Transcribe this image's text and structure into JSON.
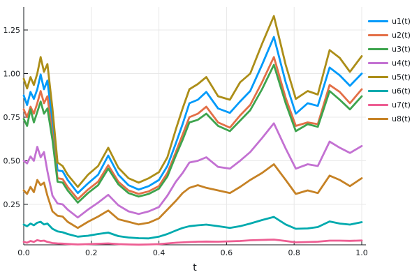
{
  "chart_data": {
    "type": "line",
    "title": "",
    "xlabel": "t",
    "ylabel": "",
    "xlim": [
      0.0,
      1.0
    ],
    "ylim": [
      0.0,
      1.38
    ],
    "grid": true,
    "legend_position": "outer-top-right",
    "x_ticks": [
      "0.0",
      "0.2",
      "0.4",
      "0.6",
      "0.8",
      "1.0"
    ],
    "x_tick_values": [
      0,
      0.2,
      0.4,
      0.6,
      0.8,
      1.0
    ],
    "y_ticks": [
      "0.25",
      "0.50",
      "0.75",
      "1.00",
      "1.25"
    ],
    "y_tick_values": [
      0.25,
      0.5,
      0.75,
      1.0,
      1.25
    ],
    "x": [
      0,
      0.01,
      0.02,
      0.03,
      0.04,
      0.05,
      0.06,
      0.07,
      0.085,
      0.1,
      0.115,
      0.13,
      0.16,
      0.19,
      0.22,
      0.25,
      0.28,
      0.31,
      0.34,
      0.37,
      0.4,
      0.425,
      0.45,
      0.47,
      0.49,
      0.515,
      0.54,
      0.575,
      0.61,
      0.64,
      0.67,
      0.705,
      0.74,
      0.775,
      0.805,
      0.84,
      0.87,
      0.905,
      0.935,
      0.965,
      1.0
    ],
    "series": [
      {
        "name": "u1(t)",
        "color": "#009AFA",
        "values": [
          0.875,
          0.82,
          0.895,
          0.855,
          0.91,
          0.995,
          0.91,
          0.96,
          0.72,
          0.445,
          0.44,
          0.39,
          0.315,
          0.37,
          0.42,
          0.53,
          0.42,
          0.36,
          0.335,
          0.355,
          0.39,
          0.47,
          0.6,
          0.71,
          0.83,
          0.85,
          0.895,
          0.8,
          0.775,
          0.84,
          0.9,
          1.05,
          1.21,
          0.95,
          0.77,
          0.83,
          0.815,
          1.035,
          0.99,
          0.93,
          1.0
        ]
      },
      {
        "name": "u2(t)",
        "color": "#E36F47",
        "values": [
          0.795,
          0.75,
          0.81,
          0.77,
          0.83,
          0.9,
          0.83,
          0.87,
          0.65,
          0.4,
          0.395,
          0.35,
          0.28,
          0.335,
          0.38,
          0.475,
          0.38,
          0.33,
          0.31,
          0.325,
          0.355,
          0.43,
          0.55,
          0.65,
          0.75,
          0.77,
          0.81,
          0.72,
          0.69,
          0.76,
          0.82,
          0.95,
          1.095,
          0.86,
          0.7,
          0.72,
          0.71,
          0.935,
          0.895,
          0.83,
          0.91
        ]
      },
      {
        "name": "u3(t)",
        "color": "#3EA44E",
        "values": [
          0.74,
          0.7,
          0.795,
          0.72,
          0.78,
          0.84,
          0.77,
          0.8,
          0.62,
          0.38,
          0.375,
          0.33,
          0.26,
          0.315,
          0.36,
          0.455,
          0.365,
          0.315,
          0.295,
          0.31,
          0.34,
          0.41,
          0.53,
          0.62,
          0.72,
          0.735,
          0.77,
          0.7,
          0.67,
          0.73,
          0.79,
          0.91,
          1.05,
          0.83,
          0.67,
          0.71,
          0.695,
          0.9,
          0.85,
          0.795,
          0.87
        ]
      },
      {
        "name": "u4(t)",
        "color": "#C371D2",
        "values": [
          0.5,
          0.485,
          0.525,
          0.5,
          0.58,
          0.52,
          0.55,
          0.44,
          0.3,
          0.255,
          0.25,
          0.22,
          0.175,
          0.22,
          0.26,
          0.305,
          0.245,
          0.21,
          0.195,
          0.21,
          0.235,
          0.3,
          0.38,
          0.43,
          0.49,
          0.5,
          0.52,
          0.465,
          0.455,
          0.5,
          0.55,
          0.63,
          0.715,
          0.57,
          0.455,
          0.48,
          0.47,
          0.61,
          0.575,
          0.545,
          0.585
        ]
      },
      {
        "name": "u5(t)",
        "color": "#AC8E18",
        "values": [
          0.97,
          0.915,
          0.98,
          0.935,
          1.0,
          1.095,
          1.01,
          1.055,
          0.8,
          0.49,
          0.47,
          0.42,
          0.35,
          0.42,
          0.47,
          0.575,
          0.46,
          0.4,
          0.375,
          0.4,
          0.435,
          0.52,
          0.68,
          0.8,
          0.91,
          0.94,
          0.98,
          0.87,
          0.85,
          0.95,
          1.0,
          1.17,
          1.33,
          1.05,
          0.855,
          0.9,
          0.88,
          1.135,
          1.09,
          1.01,
          1.1
        ]
      },
      {
        "name": "u6(t)",
        "color": "#00AAAE",
        "values": [
          0.134,
          0.125,
          0.14,
          0.13,
          0.145,
          0.15,
          0.135,
          0.14,
          0.11,
          0.095,
          0.09,
          0.08,
          0.065,
          0.07,
          0.08,
          0.088,
          0.068,
          0.06,
          0.056,
          0.055,
          0.065,
          0.08,
          0.1,
          0.115,
          0.125,
          0.13,
          0.134,
          0.125,
          0.115,
          0.125,
          0.14,
          0.16,
          0.178,
          0.135,
          0.11,
          0.112,
          0.12,
          0.152,
          0.14,
          0.134,
          0.148
        ]
      },
      {
        "name": "u7(t)",
        "color": "#ED5E93",
        "values": [
          0.035,
          0.03,
          0.04,
          0.035,
          0.045,
          0.04,
          0.042,
          0.035,
          0.028,
          0.026,
          0.025,
          0.023,
          0.02,
          0.022,
          0.024,
          0.026,
          0.022,
          0.02,
          0.019,
          0.02,
          0.022,
          0.026,
          0.03,
          0.032,
          0.034,
          0.036,
          0.037,
          0.036,
          0.038,
          0.04,
          0.044,
          0.046,
          0.048,
          0.04,
          0.032,
          0.034,
          0.036,
          0.042,
          0.042,
          0.041,
          0.043
        ]
      },
      {
        "name": "u8(t)",
        "color": "#C68225",
        "values": [
          0.33,
          0.31,
          0.35,
          0.32,
          0.39,
          0.36,
          0.375,
          0.3,
          0.21,
          0.185,
          0.18,
          0.15,
          0.115,
          0.15,
          0.18,
          0.215,
          0.165,
          0.15,
          0.135,
          0.145,
          0.17,
          0.22,
          0.27,
          0.315,
          0.345,
          0.36,
          0.345,
          0.33,
          0.315,
          0.35,
          0.39,
          0.43,
          0.48,
          0.39,
          0.31,
          0.33,
          0.315,
          0.415,
          0.39,
          0.355,
          0.4
        ]
      }
    ]
  }
}
